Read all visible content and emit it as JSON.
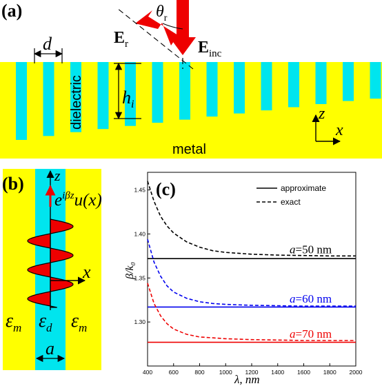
{
  "panel_a": {
    "label": "(a)",
    "d_label": "d",
    "h_label": "h",
    "h_sub": "i",
    "theta_label": "θ",
    "theta_sub": "r",
    "er_label": "E",
    "er_sub": "r",
    "einc_label": "E",
    "einc_sub": "inc",
    "dielectric_label": "dielectric",
    "metal_label": "metal",
    "axis_z": "z",
    "axis_x": "x",
    "colors": {
      "metal": "#ffff00",
      "dielectric": "#00e5ee",
      "arrow": "#ee0000"
    },
    "slot_depth_profile": [
      1.0,
      0.95,
      0.9,
      0.86,
      0.82,
      0.78,
      0.74,
      0.7,
      0.66,
      0.62,
      0.58,
      0.54,
      0.5,
      0.47,
      0.44,
      0.41
    ]
  },
  "panel_b": {
    "label": "(b)",
    "axis_z": "z",
    "axis_x": "x",
    "mode_e": "e",
    "mode_sup": "iβz",
    "mode_u": "u(x)",
    "eps_m_left": "ε",
    "eps_m_sub": "m",
    "eps_d": "ε",
    "eps_d_sub": "d",
    "eps_m_right": "ε",
    "a_label": "a"
  },
  "panel_c": {
    "label": "(c)"
  },
  "chart_data": {
    "type": "line",
    "xlabel": "λ, nm",
    "ylabel": "β/k₀",
    "xlim": [
      400,
      2000
    ],
    "ylim": [
      1.25,
      1.47
    ],
    "xticks": [
      "400",
      "600",
      "800",
      "1000",
      "1200",
      "1400",
      "1600",
      "1800",
      "2000"
    ],
    "yticks": [
      "1.30",
      "1.35",
      "1.40",
      "1.45"
    ],
    "legend": [
      {
        "label": "approximate",
        "style": "solid"
      },
      {
        "label": "exact",
        "style": "dashed"
      }
    ],
    "legend_position": "top-right",
    "series": [
      {
        "name": "a=50 nm",
        "prefix": "a",
        "suffix": "=50 nm",
        "color": "#000000",
        "approximate": 1.372,
        "exact_x": [
          400,
          450,
          500,
          550,
          600,
          700,
          800,
          900,
          1000,
          1200,
          1400,
          1600,
          1800,
          2000
        ],
        "exact_y": [
          1.46,
          1.437,
          1.42,
          1.409,
          1.401,
          1.391,
          1.385,
          1.381,
          1.379,
          1.377,
          1.376,
          1.3755,
          1.375,
          1.375
        ]
      },
      {
        "name": "a=60 nm",
        "prefix": "a",
        "suffix": "=60 nm",
        "color": "#0000ee",
        "approximate": 1.317,
        "exact_x": [
          400,
          450,
          500,
          550,
          600,
          700,
          800,
          900,
          1000,
          1200,
          1400,
          1600,
          1800,
          2000
        ],
        "exact_y": [
          1.394,
          1.368,
          1.352,
          1.341,
          1.334,
          1.327,
          1.323,
          1.321,
          1.32,
          1.319,
          1.3185,
          1.318,
          1.318,
          1.318
        ]
      },
      {
        "name": "a=70 nm",
        "prefix": "a",
        "suffix": "=70 nm",
        "color": "#ee0000",
        "approximate": 1.277,
        "exact_x": [
          400,
          450,
          500,
          550,
          600,
          700,
          800,
          900,
          1000,
          1200,
          1400,
          1600,
          1800,
          2000
        ],
        "exact_y": [
          1.344,
          1.321,
          1.307,
          1.298,
          1.292,
          1.286,
          1.283,
          1.282,
          1.281,
          1.28,
          1.2795,
          1.279,
          1.279,
          1.279
        ]
      }
    ]
  }
}
